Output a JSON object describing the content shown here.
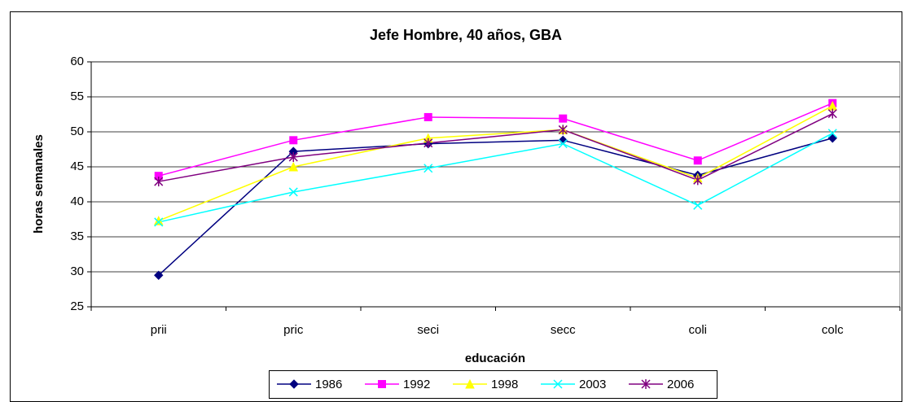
{
  "chart_data": {
    "type": "line",
    "title": "Jefe Hombre, 40 años, GBA",
    "x_label": "educación",
    "y_label": "horas semanales",
    "categories": [
      "prii",
      "pric",
      "seci",
      "secc",
      "coli",
      "colc"
    ],
    "series": [
      {
        "name": "1986",
        "color": "#000080",
        "marker": "diamond",
        "values": [
          29.5,
          47.2,
          48.3,
          48.8,
          43.8,
          49.1
        ]
      },
      {
        "name": "1992",
        "color": "#ff00ff",
        "marker": "square",
        "values": [
          43.7,
          48.8,
          52.1,
          51.9,
          45.9,
          54.1
        ]
      },
      {
        "name": "1998",
        "color": "#ffff00",
        "marker": "triangle",
        "values": [
          37.3,
          45.0,
          49.1,
          50.3,
          43.4,
          53.7
        ]
      },
      {
        "name": "2003",
        "color": "#00ffff",
        "marker": "x",
        "values": [
          37.1,
          41.4,
          44.8,
          48.3,
          39.5,
          49.8
        ]
      },
      {
        "name": "2006",
        "color": "#800080",
        "marker": "star",
        "values": [
          42.9,
          46.4,
          48.4,
          50.3,
          43.1,
          52.6
        ]
      }
    ],
    "ylim": [
      25,
      60
    ],
    "yticks": [
      25,
      30,
      35,
      40,
      45,
      50,
      55,
      60
    ],
    "grid": true,
    "legend": "bottom"
  }
}
